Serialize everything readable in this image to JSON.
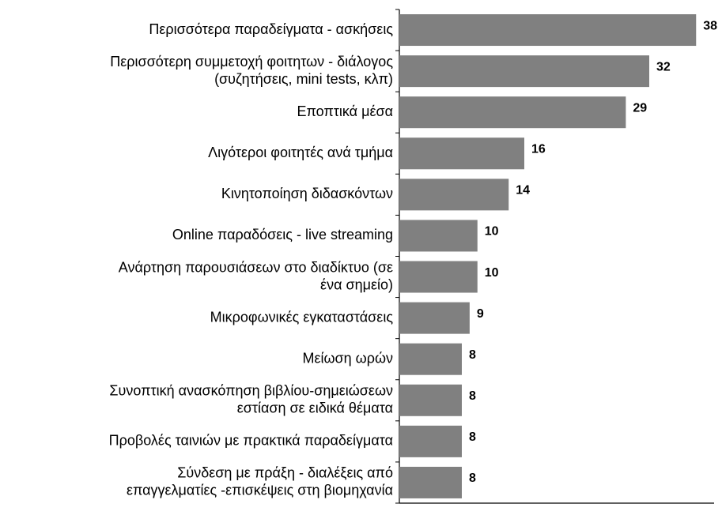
{
  "chart_data": {
    "type": "bar",
    "orientation": "horizontal",
    "categories": [
      [
        "Περισσότερα παραδείγματα - ασκήσεις"
      ],
      [
        "Περισσότερη συμμετοχή φοιτητων - διάλογος",
        "(συζητήσεις, mini tests, κλπ)"
      ],
      [
        "Εποπτικά μέσα"
      ],
      [
        "Λιγότεροι φοιτητές ανά τμήμα"
      ],
      [
        "Κινητοποίηση διδασκόντων"
      ],
      [
        "Online παραδόσεις - live streaming"
      ],
      [
        "Ανάρτηση παρουσιάσεων στο διαδίκτυο (σε",
        "ένα σημείο)"
      ],
      [
        "Μικροφωνικές εγκαταστάσεις"
      ],
      [
        "Μείωση ωρών"
      ],
      [
        "Συνοπτική ανασκόπηση βιβλίου-σημειώσεων",
        "εστίαση σε ειδικά θέματα"
      ],
      [
        "Προβολές ταινιών με πρακτικά παραδείγματα"
      ],
      [
        "Σύνδεση με πράξη - διαλέξεις από",
        "επαγγελματίες -επισκέψεις στη βιομηχανία"
      ]
    ],
    "values": [
      38,
      32,
      29,
      16,
      14,
      10,
      10,
      9,
      8,
      8,
      8,
      8
    ],
    "color": "#808080",
    "xlim": [
      0,
      40
    ]
  }
}
